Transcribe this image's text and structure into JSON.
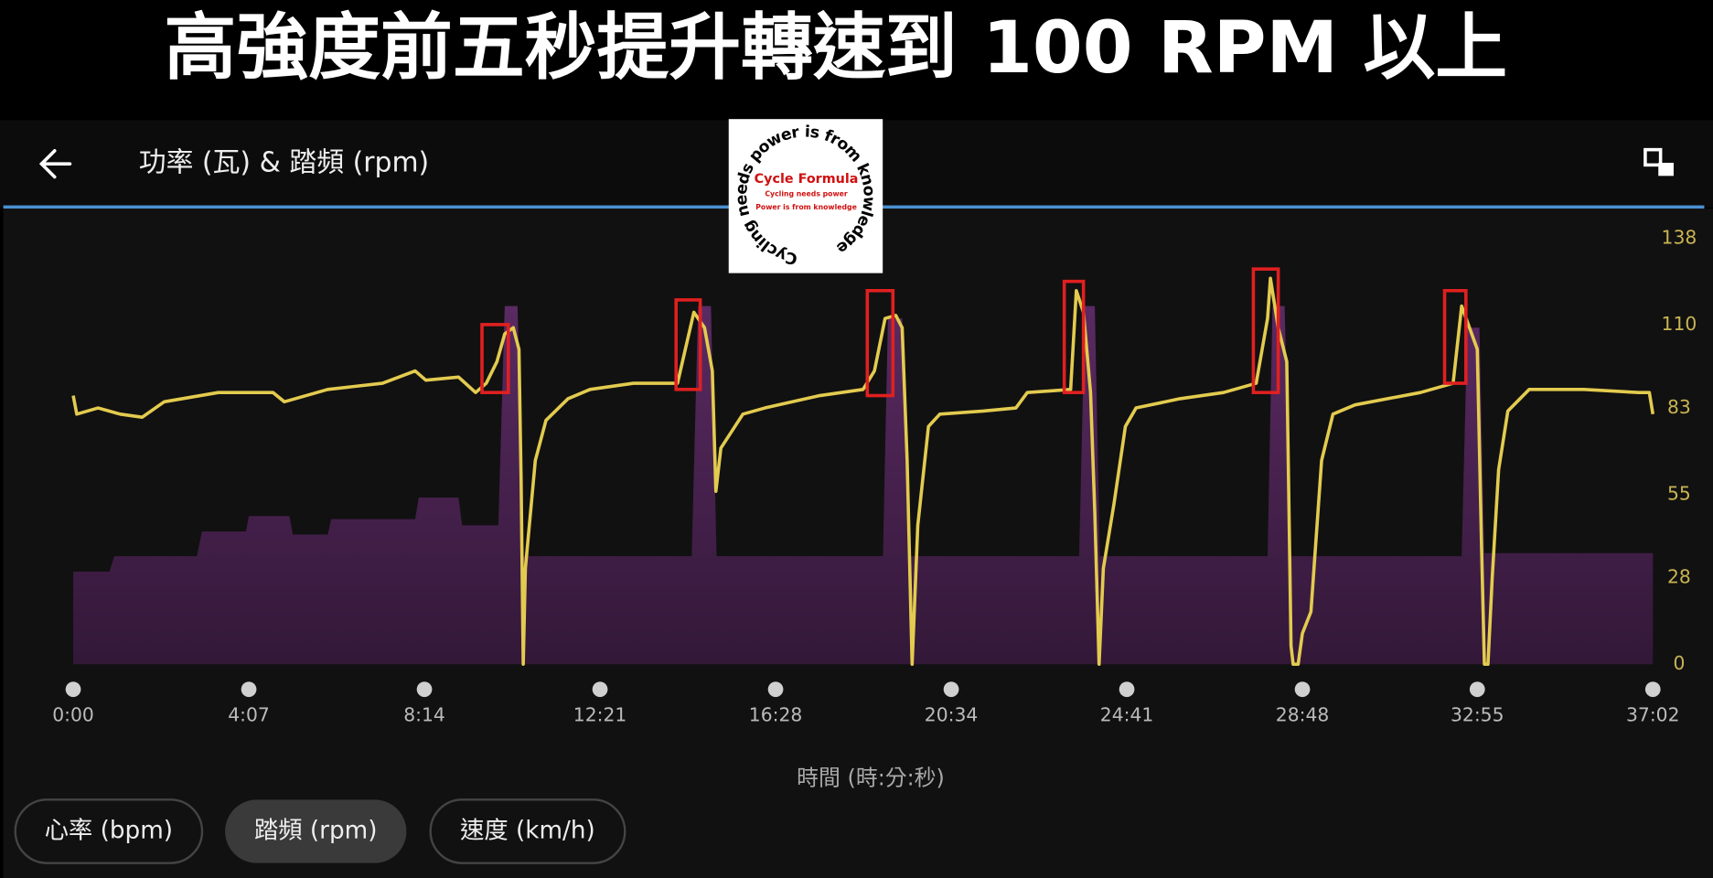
{
  "banner_title": "高強度前五秒提升轉速到 100 RPM 以上",
  "header": {
    "title": "功率 (瓦) & 踏頻 (rpm)"
  },
  "logo": {
    "ring_text": "Cycling needs power is from knowledge",
    "name": "Cycle Formula",
    "line1": "Cycling needs power",
    "line2": "Power is from knowledge"
  },
  "buttons": [
    {
      "label": "心率 (bpm)",
      "active": false
    },
    {
      "label": "踏頻 (rpm)",
      "active": true
    },
    {
      "label": "速度 (km/h)",
      "active": false
    }
  ],
  "chart_data": {
    "type": "line",
    "xlabel": "時間 (時:分:秒)",
    "xlim": [
      0,
      2222
    ],
    "ylim": [
      0,
      138
    ],
    "xticks": [
      {
        "value": 0,
        "label": "0:00"
      },
      {
        "value": 247,
        "label": "4:07"
      },
      {
        "value": 494,
        "label": "8:14"
      },
      {
        "value": 741,
        "label": "12:21"
      },
      {
        "value": 988,
        "label": "16:28"
      },
      {
        "value": 1235,
        "label": "20:34"
      },
      {
        "value": 1482,
        "label": "24:41"
      },
      {
        "value": 1729,
        "label": "28:48"
      },
      {
        "value": 1975,
        "label": "32:55"
      },
      {
        "value": 2222,
        "label": "37:02"
      }
    ],
    "yticks": [
      0,
      28,
      55,
      83,
      110,
      138
    ],
    "series": [
      {
        "type": "area",
        "color": "#4b2351",
        "x": [
          0,
          51,
          58,
          174,
          181,
          243,
          247,
          304,
          309,
          358,
          363,
          481,
          486,
          542,
          547,
          598,
          607,
          625,
          633,
          870,
          879,
          897,
          905,
          1139,
          1146,
          1166,
          1174,
          1415,
          1423,
          1437,
          1444,
          1680,
          1687,
          1704,
          1712,
          1953,
          1961,
          1978,
          1985,
          2222
        ],
        "values": [
          30,
          30,
          35,
          35,
          43,
          43,
          48,
          48,
          42,
          42,
          47,
          47,
          54,
          54,
          45,
          45,
          116,
          116,
          35,
          35,
          116,
          116,
          35,
          35,
          112,
          112,
          35,
          35,
          116,
          116,
          35,
          35,
          116,
          116,
          35,
          35,
          109,
          109,
          36,
          36
        ]
      },
      {
        "type": "line",
        "color": "#e3cb4f",
        "x": [
          0,
          5,
          35,
          66,
          97,
          128,
          204,
          281,
          297,
          358,
          435,
          481,
          496,
          542,
          566,
          581,
          596,
          607,
          619,
          627,
          630,
          633,
          636,
          650,
          665,
          696,
          727,
          788,
          850,
          857,
          873,
          888,
          899,
          904,
          911,
          942,
          973,
          1050,
          1111,
          1127,
          1142,
          1157,
          1166,
          1173,
          1180,
          1188,
          1203,
          1219,
          1280,
          1326,
          1342,
          1403,
          1411,
          1421,
          1431,
          1437,
          1443,
          1449,
          1464,
          1480,
          1495,
          1557,
          1618,
          1664,
          1680,
          1684,
          1695,
          1707,
          1713,
          1716,
          1723,
          1729,
          1741,
          1756,
          1772,
          1803,
          1895,
          1941,
          1953,
          1964,
          1975,
          1981,
          1985,
          1990,
          1996,
          2005,
          2018,
          2048,
          2125,
          2202,
          2217,
          2222
        ],
        "values": [
          87,
          81,
          83,
          81,
          80,
          85,
          88,
          88,
          85,
          89,
          91,
          95,
          92,
          93,
          88,
          91,
          98,
          107,
          109,
          102,
          60,
          0,
          31,
          66,
          79,
          86,
          89,
          91,
          91,
          98,
          114,
          109,
          95,
          56,
          70,
          81,
          83,
          87,
          89,
          95,
          112,
          113,
          109,
          66,
          0,
          45,
          77,
          81,
          82,
          83,
          88,
          89,
          121,
          114,
          88,
          49,
          0,
          31,
          52,
          77,
          83,
          86,
          88,
          91,
          112,
          125,
          109,
          98,
          6,
          0,
          0,
          10,
          17,
          66,
          81,
          84,
          88,
          91,
          116,
          109,
          102,
          38,
          0,
          0,
          28,
          63,
          82,
          89,
          89,
          88,
          88,
          81
        ]
      }
    ],
    "highlights": [
      {
        "xlim": [
          575,
          612
        ],
        "ylim": [
          88,
          110
        ]
      },
      {
        "xlim": [
          848,
          882
        ],
        "ylim": [
          89,
          118
        ]
      },
      {
        "xlim": [
          1117,
          1153
        ],
        "ylim": [
          87,
          121
        ]
      },
      {
        "xlim": [
          1394,
          1421
        ],
        "ylim": [
          88,
          124
        ]
      },
      {
        "xlim": [
          1660,
          1695
        ],
        "ylim": [
          88,
          128
        ]
      },
      {
        "xlim": [
          1929,
          1959
        ],
        "ylim": [
          91,
          121
        ]
      }
    ]
  }
}
